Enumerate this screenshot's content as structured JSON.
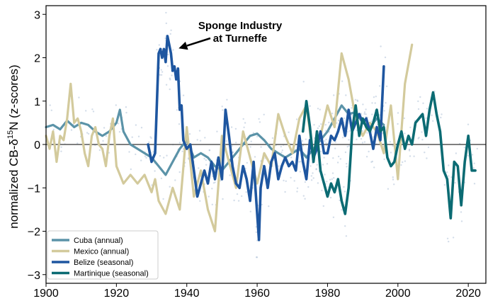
{
  "chart_data": {
    "type": "line",
    "xlabel": "",
    "ylabel_main": "normalized CB-δ",
    "ylabel_sup": "15",
    "ylabel_tail": "N (z-scores)",
    "xlim": [
      1900,
      2025
    ],
    "ylim": [
      -3.2,
      3.2
    ],
    "xticks": [
      1900,
      1920,
      1940,
      1960,
      1980,
      2000,
      2020
    ],
    "yticks": [
      -3,
      -2,
      -1,
      0,
      1,
      2,
      3
    ],
    "ytick_labels": [
      "−3",
      "−2",
      "−1",
      "0",
      "1",
      "2",
      "3"
    ],
    "zero_line": true,
    "grid": false,
    "legend_position": "bottom-left",
    "annotation": {
      "line1": "Sponge Industry",
      "line2": "at Turneffe",
      "arrow_target_x": 1936.5,
      "arrow_target_y": 2.2
    },
    "series": [
      {
        "name": "Cuba (annual)",
        "color": "#5b93a8",
        "x": [
          1900,
          1902,
          1904,
          1906,
          1908,
          1910,
          1912,
          1914,
          1916,
          1918,
          1920,
          1921,
          1922,
          1924,
          1926,
          1928,
          1930,
          1932,
          1934,
          1936,
          1938,
          1940,
          1942,
          1944,
          1946,
          1948,
          1950,
          1952,
          1954,
          1956,
          1958,
          1960,
          1962,
          1964,
          1966,
          1968,
          1970,
          1972,
          1974,
          1976,
          1978,
          1980,
          1982,
          1984,
          1986,
          1988,
          1990,
          1992,
          1994,
          1996
        ],
        "y": [
          0.4,
          0.45,
          0.35,
          0.55,
          0.4,
          0.5,
          0.45,
          0.3,
          0.2,
          0.3,
          0.5,
          0.8,
          0.3,
          0.0,
          -0.1,
          -0.2,
          -0.3,
          -0.5,
          -0.7,
          -0.4,
          -0.1,
          0.1,
          -0.3,
          -0.2,
          -0.3,
          -0.5,
          -0.6,
          -0.4,
          -0.2,
          0.0,
          0.2,
          0.25,
          0.1,
          -0.1,
          -0.2,
          -0.3,
          -0.2,
          -0.1,
          -0.3,
          -0.1,
          0.1,
          0.3,
          0.6,
          0.9,
          0.7,
          0.75,
          0.5,
          0.4,
          0.6,
          0.45
        ]
      },
      {
        "name": "Mexico (annual)",
        "color": "#d3ca9c",
        "x": [
          1900,
          1901,
          1902,
          1903,
          1904,
          1905,
          1906,
          1907,
          1908,
          1909,
          1910,
          1911,
          1912,
          1913,
          1914,
          1915,
          1916,
          1917,
          1918,
          1919,
          1920,
          1922,
          1924,
          1926,
          1928,
          1930,
          1931,
          1932,
          1934,
          1936,
          1938,
          1940,
          1942,
          1944,
          1946,
          1948,
          1950,
          1952,
          1954,
          1956,
          1958,
          1960,
          1962,
          1964,
          1966,
          1968,
          1970,
          1972,
          1974,
          1976,
          1978,
          1980,
          1982,
          1984,
          1986,
          1988,
          1990,
          1992,
          1994,
          1996,
          1998,
          2000,
          2002,
          2004
        ],
        "y": [
          0.2,
          -0.1,
          0.3,
          -0.4,
          0.2,
          0.1,
          0.6,
          1.4,
          0.5,
          0.6,
          0.3,
          -0.2,
          -0.5,
          0.2,
          0.4,
          0.0,
          -0.1,
          -0.5,
          0.2,
          0.6,
          -0.5,
          -0.9,
          -0.7,
          -0.9,
          -0.7,
          -1.1,
          -0.8,
          -1.3,
          -1.6,
          -1.0,
          -1.5,
          0.4,
          -1.2,
          -0.6,
          -1.5,
          -2.0,
          0.2,
          -0.4,
          -1.0,
          0.3,
          -0.3,
          -0.9,
          -0.2,
          -0.5,
          0.7,
          0.2,
          -0.2,
          0.6,
          0.9,
          -0.3,
          0.2,
          0.9,
          0.4,
          2.1,
          1.5,
          0.6,
          0.2,
          0.5,
          0.3,
          -0.2,
          0.9,
          -0.8,
          1.4,
          2.3
        ]
      },
      {
        "name": "Belize (seasonal)",
        "color": "#1e56a0",
        "x": [
          1929,
          1930,
          1931,
          1932,
          1932.5,
          1933,
          1933.5,
          1934,
          1934.5,
          1935,
          1935.5,
          1936,
          1936.5,
          1937,
          1937.5,
          1938,
          1938.5,
          1939,
          1940,
          1941,
          1942,
          1943,
          1944,
          1945,
          1946,
          1947,
          1948,
          1949,
          1950,
          1951,
          1952,
          1953,
          1954,
          1955,
          1956,
          1957,
          1958,
          1959,
          1960,
          1960.5,
          1961,
          1962,
          1963,
          1964,
          1965,
          1966,
          1967,
          1968,
          1969,
          1970,
          1971,
          1972,
          1973,
          1974,
          1975,
          1976,
          1977,
          1978,
          1979,
          1980,
          1981,
          1982,
          1983,
          1984,
          1985,
          1986,
          1987,
          1988,
          1989,
          1990,
          1991,
          1992,
          1993,
          1994,
          1995,
          1996
        ],
        "y": [
          0.0,
          -0.4,
          -0.2,
          2.1,
          2.2,
          2.0,
          2.2,
          1.9,
          2.5,
          2.3,
          2.1,
          1.7,
          1.8,
          1.5,
          1.75,
          0.8,
          0.9,
          0.1,
          -0.1,
          0.0,
          -0.6,
          -1.2,
          -0.9,
          -0.6,
          -0.9,
          -0.4,
          -0.8,
          -0.3,
          -0.8,
          0.8,
          0.2,
          -0.5,
          -0.9,
          -1.0,
          -0.5,
          -0.8,
          -1.3,
          -0.4,
          -1.6,
          -2.2,
          -1.0,
          -0.5,
          -1.0,
          -0.4,
          -0.2,
          -0.8,
          -0.5,
          -0.3,
          -0.5,
          -0.4,
          -0.6,
          0.2,
          -0.4,
          -0.8,
          0.1,
          -0.3,
          -0.1,
          0.3,
          -0.2,
          -0.2,
          0.2,
          0.1,
          0.3,
          0.6,
          0.2,
          0.8,
          0.3,
          0.5,
          0.7,
          0.5,
          0.6,
          0.3,
          -0.1,
          0.4,
          0.1,
          1.8
        ]
      },
      {
        "name": "Martinique (seasonal)",
        "color": "#0b6b73",
        "x": [
          1973,
          1974,
          1975,
          1976,
          1977,
          1978,
          1979,
          1980,
          1981,
          1982,
          1983,
          1984,
          1985,
          1986,
          1987,
          1988,
          1989,
          1990,
          1991,
          1992,
          1993,
          1994,
          1995,
          1996,
          1997,
          1998,
          1999,
          2000,
          2001,
          2002,
          2003,
          2004,
          2005,
          2006,
          2007,
          2008,
          2009,
          2010,
          2011,
          2012,
          2013,
          2014,
          2015,
          2016,
          2017,
          2018,
          2019,
          2020,
          2021,
          2022
        ],
        "y": [
          0.3,
          1.0,
          0.4,
          -0.4,
          0.3,
          -0.6,
          -0.9,
          -1.2,
          -0.9,
          -1.1,
          -0.8,
          -1.3,
          -1.6,
          -1.0,
          0.3,
          0.9,
          0.2,
          0.6,
          0.4,
          0.3,
          0.5,
          0.8,
          0.3,
          0.4,
          -0.3,
          -0.5,
          -0.4,
          0.0,
          0.3,
          -0.1,
          0.2,
          0.0,
          0.5,
          0.6,
          0.7,
          0.2,
          0.8,
          1.2,
          0.7,
          0.3,
          -0.6,
          -0.8,
          -1.7,
          -0.4,
          -0.5,
          -1.4,
          -0.4,
          0.2,
          -0.6,
          -0.6
        ]
      }
    ]
  }
}
